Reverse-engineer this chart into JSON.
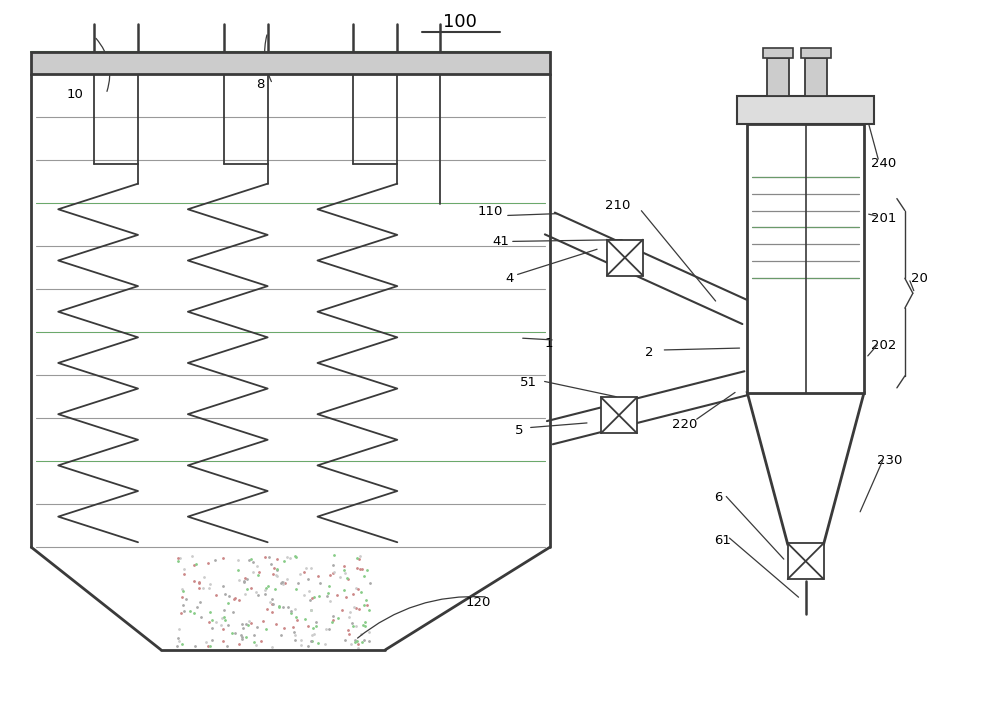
{
  "bg_color": "#ffffff",
  "line_color": "#3a3a3a",
  "gray_fill": "#c8c8c8",
  "light_gray": "#aaaaaa",
  "green_line": "#4a8a4a"
}
